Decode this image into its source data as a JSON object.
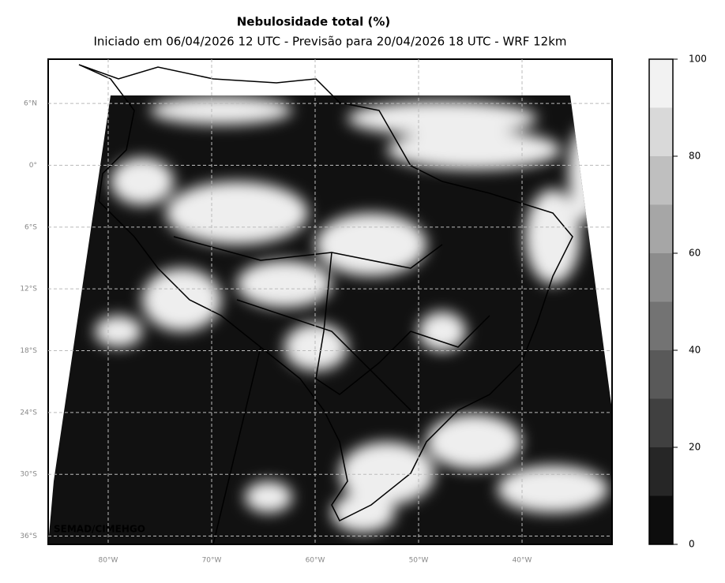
{
  "header": {
    "title": "Nebulosidade total (%)",
    "subtitle": "Iniciado em 06/04/2026 12 UTC - Previsão para 20/04/2026 18 UTC - WRF 12km"
  },
  "map": {
    "xlim": [
      -85.8,
      -31.3
    ],
    "ylim": [
      -36.8,
      10.3
    ],
    "xticks": [
      {
        "value": -80,
        "label": "80°W"
      },
      {
        "value": -70,
        "label": "70°W"
      },
      {
        "value": -60,
        "label": "60°W"
      },
      {
        "value": -50,
        "label": "50°W"
      },
      {
        "value": -40,
        "label": "40°W"
      }
    ],
    "yticks": [
      {
        "value": 6,
        "label": "6°N"
      },
      {
        "value": 0,
        "label": "0°"
      },
      {
        "value": -6,
        "label": "6°S"
      },
      {
        "value": -12,
        "label": "12°S"
      },
      {
        "value": -18,
        "label": "18°S"
      },
      {
        "value": -24,
        "label": "24°S"
      },
      {
        "value": -30,
        "label": "30°S"
      },
      {
        "value": -36,
        "label": "36°S"
      }
    ],
    "grid": true,
    "watermark": "SEMAD/CIMEHGO"
  },
  "colorbar": {
    "levels": [
      0,
      10,
      20,
      30,
      40,
      50,
      60,
      70,
      80,
      90,
      100
    ],
    "colors": [
      "#0d0d0d",
      "#262626",
      "#404040",
      "#595959",
      "#737373",
      "#8c8c8c",
      "#a6a6a6",
      "#bfbfbf",
      "#d9d9d9",
      "#f2f2f2"
    ],
    "ticks": [
      0,
      20,
      40,
      60,
      80,
      100
    ]
  }
}
